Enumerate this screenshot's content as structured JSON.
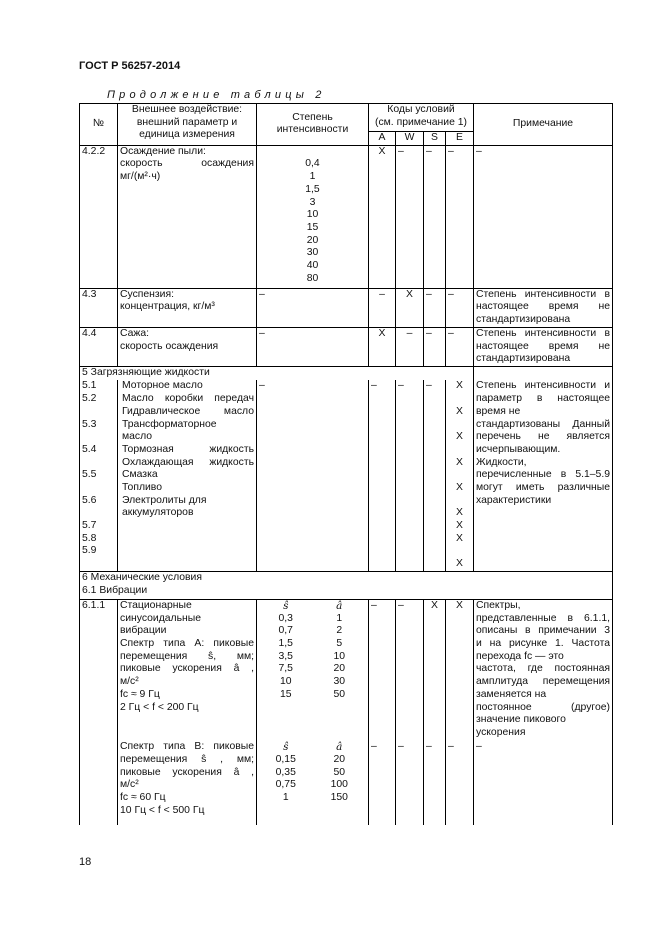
{
  "header": {
    "doc_id": "ГОСТ Р 56257-2014",
    "caption": "Продолжение таблицы 2",
    "page_number": "18"
  },
  "columns": {
    "num": "№",
    "param": [
      "Внешнее воздействие:",
      "внешний параметр и",
      "единица измерения"
    ],
    "intensity": [
      "Степень",
      "интенсивности"
    ],
    "codes": [
      "Коды условий",
      "(см. примечание 1)"
    ],
    "A": "A",
    "W": "W",
    "S": "S",
    "E": "E",
    "note": "Примечание"
  },
  "rows": {
    "r422": {
      "num": "4.2.2",
      "param": [
        "Осаждение пыли:",
        "скорость осаждения",
        "мг/(м²·ч)"
      ],
      "intensity": [
        "",
        "0,4",
        "1",
        "1,5",
        "3",
        "10",
        "15",
        "20",
        "30",
        "40",
        "80"
      ],
      "A": "X",
      "W": "–",
      "S": "–",
      "E": "–",
      "note": [
        "–"
      ]
    },
    "r43": {
      "num": "4.3",
      "param": [
        "Суспензия:",
        "концентрация, кг/м³"
      ],
      "intensity": [
        "–"
      ],
      "A": "–",
      "W": "X",
      "S": "–",
      "E": "–",
      "note": [
        "Степень интенсивности в",
        "настоящее время не",
        "стандартизирована"
      ]
    },
    "r44": {
      "num": "4.4",
      "param": [
        "Сажа:",
        "скорость осаждения"
      ],
      "intensity": [
        "–"
      ],
      "A": "X",
      "W": "–",
      "S": "–",
      "E": "–",
      "note": [
        "Степень интенсивности в",
        "настоящее время не",
        "стандартизирована"
      ]
    },
    "sec5": "5 Загрязняющие жидкости",
    "r5": {
      "num": [
        "5.1",
        "5.2",
        "",
        "5.3",
        "",
        "5.4",
        "",
        "5.5",
        "",
        "5.6",
        "",
        "5.7",
        "5.8",
        "5.9"
      ],
      "param": [
        "Моторное масло",
        "Масло коробки передач",
        "Гидравлическое масло",
        "Трансформаторное",
        "масло",
        "Тормозная жидкость",
        "Охлаждающая жидкость",
        "Смазка",
        "Топливо",
        "Электролиты для",
        "аккумуляторов"
      ],
      "intensity": [
        "–"
      ],
      "A": [
        "–"
      ],
      "W": [
        "–"
      ],
      "S": [
        "–"
      ],
      "E": [
        "X",
        "",
        "X",
        "",
        "X",
        "",
        "X",
        "",
        "X",
        "",
        "X",
        "X",
        "X",
        "",
        "X"
      ],
      "note": [
        "Степень интенсивности и",
        "параметр в настоящее",
        "время не",
        "стандартизованы Данный",
        "перечень не является",
        "исчерпывающим.",
        "Жидкости,",
        "перечисленные в 5.1–5.9",
        "могут иметь различные",
        "характеристики"
      ]
    },
    "sec6": "6 Механические условия",
    "sec61": "6.1 Вибрации",
    "r611a": {
      "num": "6.1.1",
      "param": [
        "Стационарные",
        "синусоидальные",
        "вибрации",
        "Спектр типа А: пиковые",
        "перемещения ŝ, мм;",
        "пиковые ускорения â ,",
        "м/с²",
        "fc ≈ 9 Гц",
        "2 Гц < f < 200 Гц"
      ],
      "s": [
        "ŝ",
        "0,3",
        "0,7",
        "1,5",
        "3,5",
        "7,5",
        "10",
        "15"
      ],
      "a": [
        "â",
        "1",
        "2",
        "5",
        "10",
        "20",
        "30",
        "50"
      ],
      "A": "–",
      "W": "–",
      "S": "X",
      "E": "X",
      "note": [
        "Спектры,",
        "представленные в 6.1.1,",
        "описаны в примечании 3",
        "и на рисунке 1. Частота",
        "перехода fc — это",
        "частота, где постоянная",
        "амплитуда перемещения",
        "заменяется на",
        "постоянное (другое)",
        "значение пикового",
        "ускорения"
      ]
    },
    "r611b": {
      "param": [
        "Спектр типа В: пиковые",
        "перемещения ŝ , мм;",
        "пиковые ускорения â ,",
        "м/с²",
        "fc ≈ 60 Гц",
        "10 Гц < f < 500 Гц"
      ],
      "s": [
        "ŝ",
        "0,15",
        "0,35",
        "0,75",
        "1"
      ],
      "a": [
        "â",
        "20",
        "50",
        "100",
        "150"
      ],
      "A": "–",
      "W": "–",
      "S": "–",
      "E": "–",
      "note": [
        "–"
      ]
    }
  }
}
